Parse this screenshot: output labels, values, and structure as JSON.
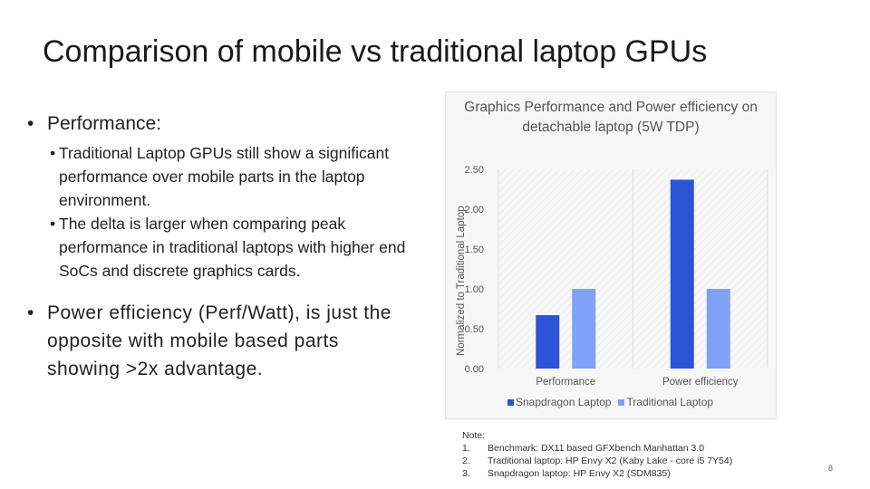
{
  "slide": {
    "title": "Comparison of mobile vs traditional laptop GPUs",
    "page_number": "8"
  },
  "bullets": {
    "performance": "Performance:",
    "sub1": "Traditional Laptop GPUs still show a significant  performance over mobile parts in the laptop environment.",
    "sub2": "The delta is larger when comparing peak performance in traditional laptops with higher end SoCs and discrete graphics cards.",
    "power": "Power efficiency (Perf/Watt), is just the opposite with mobile based parts showing >2x advantage."
  },
  "chart_data": {
    "type": "bar",
    "title": "Graphics Performance and Power efficiency on detachable laptop (5W TDP)",
    "ylabel": "Normalized to Traditional Laptop",
    "categories": [
      "Performance",
      "Power efficiency"
    ],
    "series": [
      {
        "name": "Snapdragon Laptop",
        "values": [
          0.67,
          2.37
        ],
        "color": "#2b55d6"
      },
      {
        "name": "Traditional Laptop",
        "values": [
          1.0,
          1.0
        ],
        "color": "#7fa2f7"
      }
    ],
    "ylim": [
      0,
      2.5
    ],
    "yticks": [
      "0.00",
      "0.50",
      "1.00",
      "1.50",
      "2.00",
      "2.50"
    ],
    "legend": "bottom",
    "grid": false
  },
  "notes": {
    "header": "Note:",
    "items": [
      {
        "num": "1.",
        "text": "Benchmark: DX11 based GFXbench Manhattan 3.0"
      },
      {
        "num": "2.",
        "text": "Traditional laptop: HP Envy X2 (Kaby Lake - core i5 7Y54)"
      },
      {
        "num": "3.",
        "text": "Snapdragon laptop: HP Envy X2 (SDM835)"
      }
    ]
  }
}
